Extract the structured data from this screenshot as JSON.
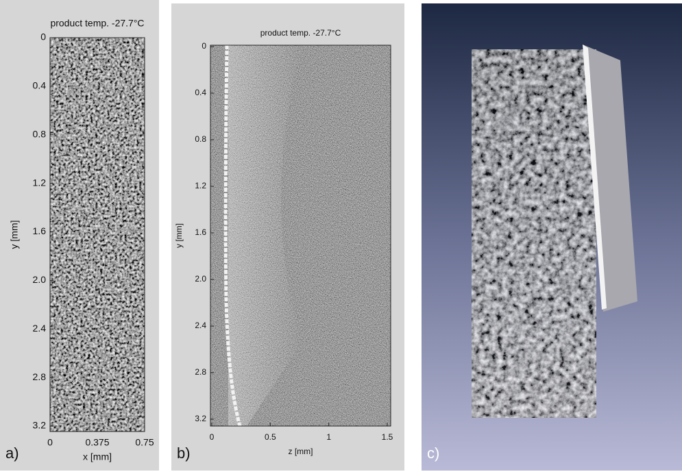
{
  "panels": [
    {
      "label": "a)",
      "title": "product temp. -27.7°C",
      "y_axis": {
        "label": "y [mm]",
        "ticks": [
          "0",
          "0.4",
          "0.8",
          "1.2",
          "1.6",
          "2.0",
          "2.4",
          "2.8",
          "3.2"
        ]
      },
      "x_axis": {
        "label": "x [mm]",
        "ticks": [
          "0",
          "0.375",
          "0.75"
        ]
      }
    },
    {
      "label": "b)",
      "title": "product temp. -27.7°C",
      "y_axis": {
        "label": "y [mm]",
        "ticks": [
          "0",
          "0.4",
          "0.8",
          "1.2",
          "1.6",
          "2.0",
          "2.4",
          "2.8",
          "3.2"
        ]
      },
      "x_axis": {
        "label": "z [mm]",
        "ticks": [
          "0",
          "0.5",
          "1",
          "1.5"
        ]
      }
    },
    {
      "label": "c)"
    }
  ]
}
